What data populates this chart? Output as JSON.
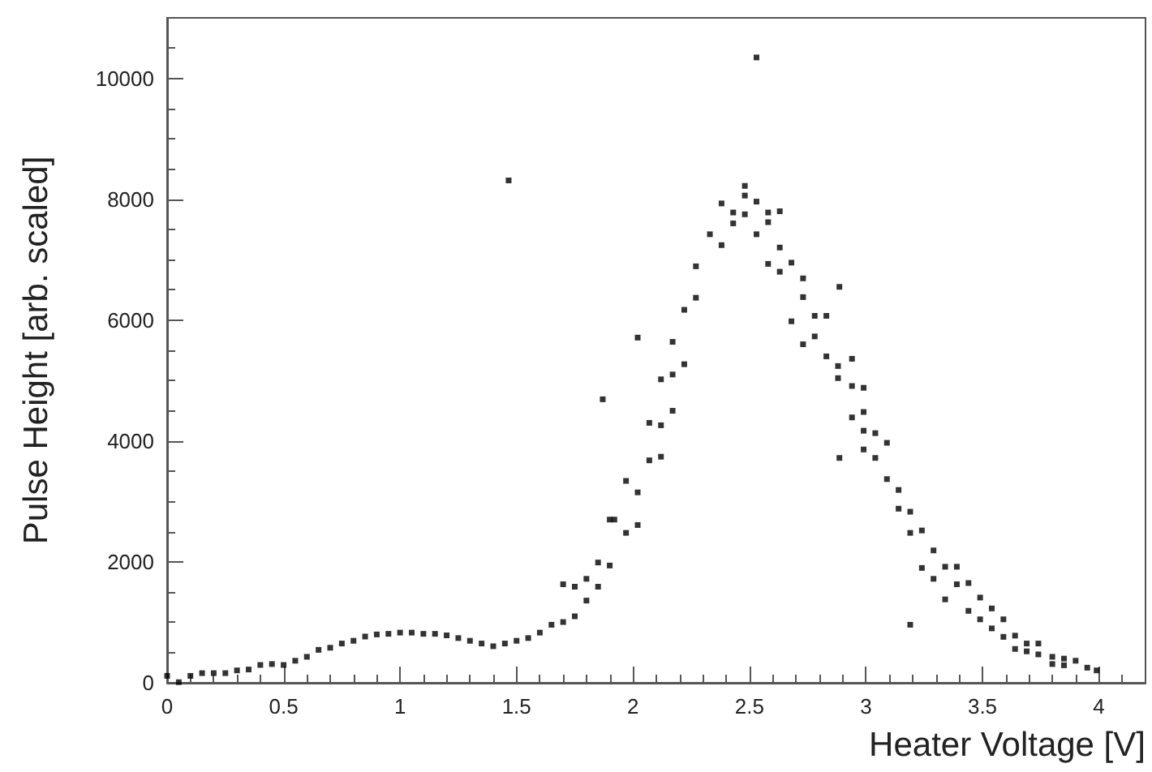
{
  "chart_data": {
    "type": "scatter",
    "xlabel": "Heater Voltage [V]",
    "ylabel": "Pulse Height [arb. scaled]",
    "xlim": [
      0,
      4.2
    ],
    "ylim": [
      0,
      11000
    ],
    "xticks": [
      0,
      0.5,
      1,
      1.5,
      2,
      2.5,
      3,
      3.5,
      4
    ],
    "yticks": [
      0,
      2000,
      4000,
      6000,
      8000,
      10000
    ],
    "grid": false,
    "marker": "square",
    "series": [
      {
        "color": "#000000",
        "x": [
          0,
          0.05,
          0.1,
          0.15,
          0.2,
          0.25,
          0.3,
          0.35,
          0.4,
          0.45,
          0.5,
          0.55,
          0.6,
          0.65,
          0.7,
          0.75,
          0.8,
          0.85,
          0.9,
          0.95,
          1.0,
          1.05,
          1.1,
          1.15,
          1.2,
          1.25,
          1.3,
          1.35,
          1.4,
          1.45,
          1.5,
          1.55,
          1.6,
          1.65,
          1.7,
          1.7,
          1.75,
          1.75,
          1.8,
          1.8,
          1.85,
          1.85,
          1.9,
          1.9,
          1.466,
          2.53,
          1.87,
          2.02,
          2.886,
          2.886,
          3.19,
          1.92,
          1.97,
          1.97,
          2.02,
          2.02,
          2.07,
          2.07,
          2.12,
          2.12,
          2.12,
          2.17,
          2.17,
          2.17,
          2.22,
          2.22,
          2.27,
          2.27,
          2.33,
          2.38,
          2.38,
          2.43,
          2.43,
          2.48,
          2.48,
          2.48,
          2.53,
          2.53,
          2.58,
          2.58,
          2.58,
          2.63,
          2.63,
          2.63,
          2.68,
          2.68,
          2.73,
          2.73,
          2.73,
          2.78,
          2.78,
          2.83,
          2.83,
          2.88,
          2.88,
          2.94,
          2.94,
          2.94,
          2.99,
          2.99,
          2.99,
          2.99,
          3.04,
          3.04,
          3.09,
          3.09,
          3.14,
          3.14,
          3.19,
          3.19,
          3.24,
          3.24,
          3.29,
          3.29,
          3.34,
          3.34,
          3.39,
          3.39,
          3.44,
          3.44,
          3.49,
          3.49,
          3.54,
          3.54,
          3.59,
          3.59,
          3.64,
          3.64,
          3.69,
          3.69,
          3.74,
          3.74,
          3.8,
          3.8,
          3.85,
          3.85,
          3.9,
          3.95,
          3.99
        ],
        "values": [
          115,
          10,
          115,
          160,
          160,
          160,
          205,
          220,
          295,
          310,
          295,
          365,
          430,
          545,
          580,
          650,
          695,
          765,
          800,
          810,
          830,
          830,
          810,
          810,
          785,
          740,
          695,
          650,
          605,
          650,
          695,
          740,
          830,
          960,
          1630,
          1005,
          1590,
          1100,
          1720,
          1360,
          1990,
          1590,
          1940,
          2700,
          8310,
          10345,
          4690,
          5710,
          6550,
          3720,
          960,
          2700,
          2480,
          3340,
          3150,
          2610,
          3680,
          4300,
          4260,
          3740,
          5020,
          5100,
          4500,
          5640,
          5270,
          6170,
          6370,
          6890,
          7420,
          7930,
          7240,
          7780,
          7600,
          8220,
          8060,
          7750,
          7960,
          7420,
          7780,
          7620,
          6930,
          7800,
          7200,
          6800,
          6950,
          5980,
          6690,
          6380,
          5600,
          6070,
          5730,
          6070,
          5400,
          5240,
          5040,
          5360,
          4910,
          4390,
          4880,
          4480,
          4170,
          3860,
          4130,
          3720,
          3970,
          3370,
          3190,
          2880,
          2830,
          2480,
          2520,
          1900,
          2190,
          1720,
          1920,
          1380,
          1920,
          1630,
          1650,
          1190,
          1410,
          1050,
          1230,
          900,
          1050,
          760,
          780,
          560,
          650,
          520,
          650,
          470,
          430,
          310,
          400,
          290,
          365,
          250,
          205
        ]
      }
    ]
  }
}
